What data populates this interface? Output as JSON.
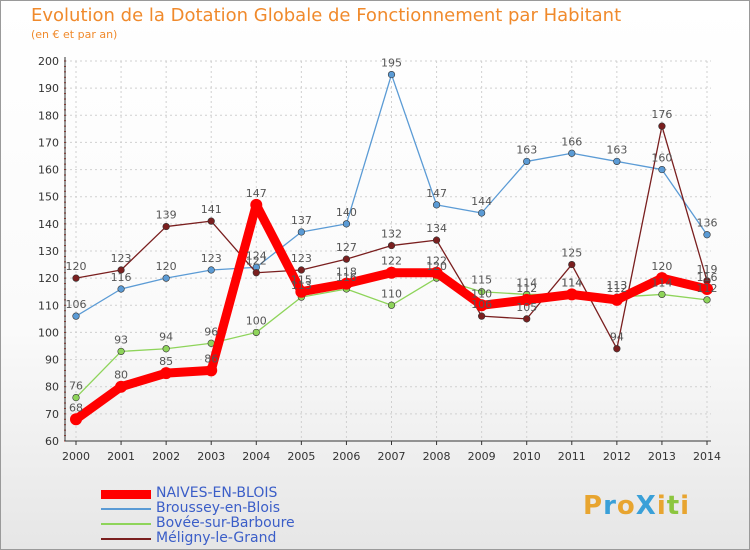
{
  "chart_data": {
    "type": "line",
    "title": "Evolution de la Dotation Globale de Fonctionnement par Habitant",
    "subtitle": "(en € et par an)",
    "x": [
      "2000",
      "2001",
      "2002",
      "2003",
      "2004",
      "2005",
      "2006",
      "2007",
      "2008",
      "2009",
      "2010",
      "2011",
      "2012",
      "2013",
      "2014"
    ],
    "ylim": [
      60,
      200
    ],
    "yticks": [
      60,
      70,
      80,
      90,
      100,
      110,
      120,
      130,
      140,
      150,
      160,
      170,
      180,
      190,
      200
    ],
    "grid": true,
    "legend_position": "bottom-left",
    "series": [
      {
        "name": "NAIVES-EN-BLOIS",
        "color": "#ff0000",
        "values": [
          68,
          80,
          85,
          86,
          147,
          115,
          118,
          122,
          122,
          110,
          112,
          114,
          112,
          120,
          116
        ]
      },
      {
        "name": "Broussey-en-Blois",
        "color": "#5b9bd5",
        "values": [
          106,
          116,
          120,
          123,
          124,
          137,
          140,
          195,
          147,
          144,
          163,
          166,
          163,
          160,
          136
        ]
      },
      {
        "name": "Bovée-sur-Barboure",
        "color": "#8ed45a",
        "values": [
          76,
          93,
          94,
          96,
          100,
          113,
          116,
          110,
          120,
          115,
          114,
          114,
          113,
          114,
          112
        ]
      },
      {
        "name": "Méligny-le-Grand",
        "color": "#7a1f1f",
        "values": [
          120,
          123,
          139,
          141,
          122,
          123,
          127,
          132,
          134,
          106,
          105,
          125,
          94,
          176,
          119
        ]
      }
    ]
  },
  "logo": {
    "text": "ProXiti",
    "colors": [
      "#e8a530",
      "#3aa0d8",
      "#e8a530",
      "#3aa0d8",
      "#e8a530",
      "#8cc63f",
      "#e8a530"
    ]
  }
}
